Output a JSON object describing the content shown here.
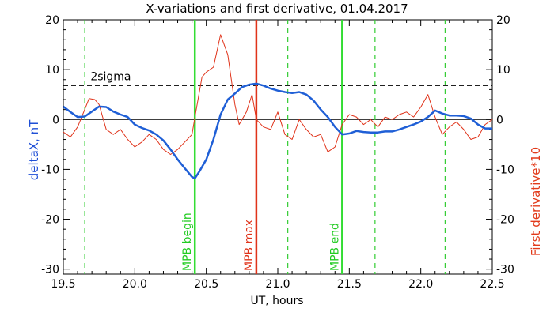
{
  "chart_data": {
    "type": "line",
    "title": "X-variations and first derivative, 01.04.2017",
    "xlabel": "UT, hours",
    "ylabel_left": "deltaX, nT",
    "ylabel_right": "First derivative*10",
    "xlim": [
      19.5,
      22.5
    ],
    "ylim": [
      -31,
      20
    ],
    "x_ticks": [
      "19.5",
      "20.0",
      "20.5",
      "21.0",
      "21.5",
      "22.0",
      "22.5"
    ],
    "y_ticks": [
      "20",
      "10",
      "0",
      "-10",
      "-20",
      "-30"
    ],
    "colors": {
      "deltaX": "#1f5fd6",
      "derivative": "#e0331a",
      "mpb": "#33dd33",
      "mpb_max": "#e0331a",
      "dashed": "#33cc33"
    },
    "sigma_level": 6.8,
    "sigma_label": "2sigma",
    "markers": [
      {
        "label": "MPB begin",
        "x": 20.42,
        "color": "green"
      },
      {
        "label": "MPB max",
        "x": 20.85,
        "color": "red"
      },
      {
        "label": "MPB end",
        "x": 21.45,
        "color": "green"
      }
    ],
    "dashed_lines_x": [
      19.65,
      21.07,
      21.68,
      22.17
    ],
    "series": [
      {
        "name": "deltaX, nT",
        "x": [
          19.5,
          19.55,
          19.6,
          19.65,
          19.7,
          19.75,
          19.8,
          19.85,
          19.9,
          19.95,
          20.0,
          20.05,
          20.1,
          20.15,
          20.2,
          20.25,
          20.3,
          20.35,
          20.4,
          20.42,
          20.45,
          20.5,
          20.55,
          20.6,
          20.65,
          20.7,
          20.75,
          20.8,
          20.85,
          20.9,
          20.95,
          21.0,
          21.05,
          21.1,
          21.15,
          21.2,
          21.25,
          21.3,
          21.35,
          21.4,
          21.45,
          21.5,
          21.55,
          21.6,
          21.65,
          21.7,
          21.75,
          21.8,
          21.85,
          21.9,
          21.95,
          22.0,
          22.05,
          22.1,
          22.15,
          22.2,
          22.25,
          22.3,
          22.35,
          22.4,
          22.45,
          22.5
        ],
        "values": [
          2.6,
          1.5,
          0.5,
          0.6,
          1.6,
          2.6,
          2.5,
          1.6,
          1.0,
          0.5,
          -1.0,
          -1.7,
          -2.2,
          -3.0,
          -4.2,
          -6.0,
          -8.0,
          -9.8,
          -11.5,
          -11.8,
          -10.5,
          -8.0,
          -4.0,
          1.0,
          4.0,
          5.2,
          6.5,
          7.0,
          7.2,
          6.8,
          6.2,
          5.8,
          5.5,
          5.3,
          5.5,
          5.0,
          3.8,
          2.0,
          0.5,
          -1.5,
          -3.0,
          -2.8,
          -2.3,
          -2.5,
          -2.6,
          -2.6,
          -2.4,
          -2.4,
          -2.0,
          -1.5,
          -1.0,
          -0.4,
          0.5,
          1.8,
          1.2,
          0.8,
          0.8,
          0.7,
          0.2,
          -1.0,
          -1.8,
          -1.8
        ]
      },
      {
        "name": "First derivative*10",
        "x": [
          19.5,
          19.55,
          19.6,
          19.65,
          19.68,
          19.72,
          19.75,
          19.8,
          19.85,
          19.9,
          19.95,
          20.0,
          20.05,
          20.1,
          20.15,
          20.2,
          20.25,
          20.3,
          20.35,
          20.4,
          20.43,
          20.47,
          20.5,
          20.55,
          20.6,
          20.65,
          20.7,
          20.73,
          20.78,
          20.82,
          20.85,
          20.9,
          20.95,
          21.0,
          21.05,
          21.1,
          21.15,
          21.2,
          21.25,
          21.3,
          21.35,
          21.4,
          21.45,
          21.5,
          21.55,
          21.6,
          21.65,
          21.7,
          21.75,
          21.8,
          21.85,
          21.9,
          21.95,
          22.0,
          22.05,
          22.1,
          22.15,
          22.2,
          22.25,
          22.3,
          22.35,
          22.4,
          22.45,
          22.5
        ],
        "values": [
          -2.5,
          -3.5,
          -1.5,
          2.0,
          4.2,
          4.0,
          3.0,
          -2.0,
          -3.0,
          -2.0,
          -4.0,
          -5.5,
          -4.5,
          -3.0,
          -4.0,
          -6.0,
          -7.0,
          -6.0,
          -4.5,
          -3.0,
          2.0,
          8.5,
          9.5,
          10.5,
          17.0,
          13.0,
          3.0,
          -1.0,
          1.5,
          5.0,
          0.0,
          -1.5,
          -2.0,
          1.5,
          -3.0,
          -4.0,
          0.0,
          -2.0,
          -3.5,
          -3.0,
          -6.5,
          -5.5,
          -1.0,
          1.0,
          0.5,
          -1.0,
          0.0,
          -1.5,
          0.5,
          0.0,
          1.0,
          1.5,
          0.5,
          2.5,
          5.0,
          0.5,
          -3.0,
          -1.5,
          -0.5,
          -2.0,
          -4.0,
          -3.5,
          -1.0,
          0.0
        ]
      }
    ]
  }
}
